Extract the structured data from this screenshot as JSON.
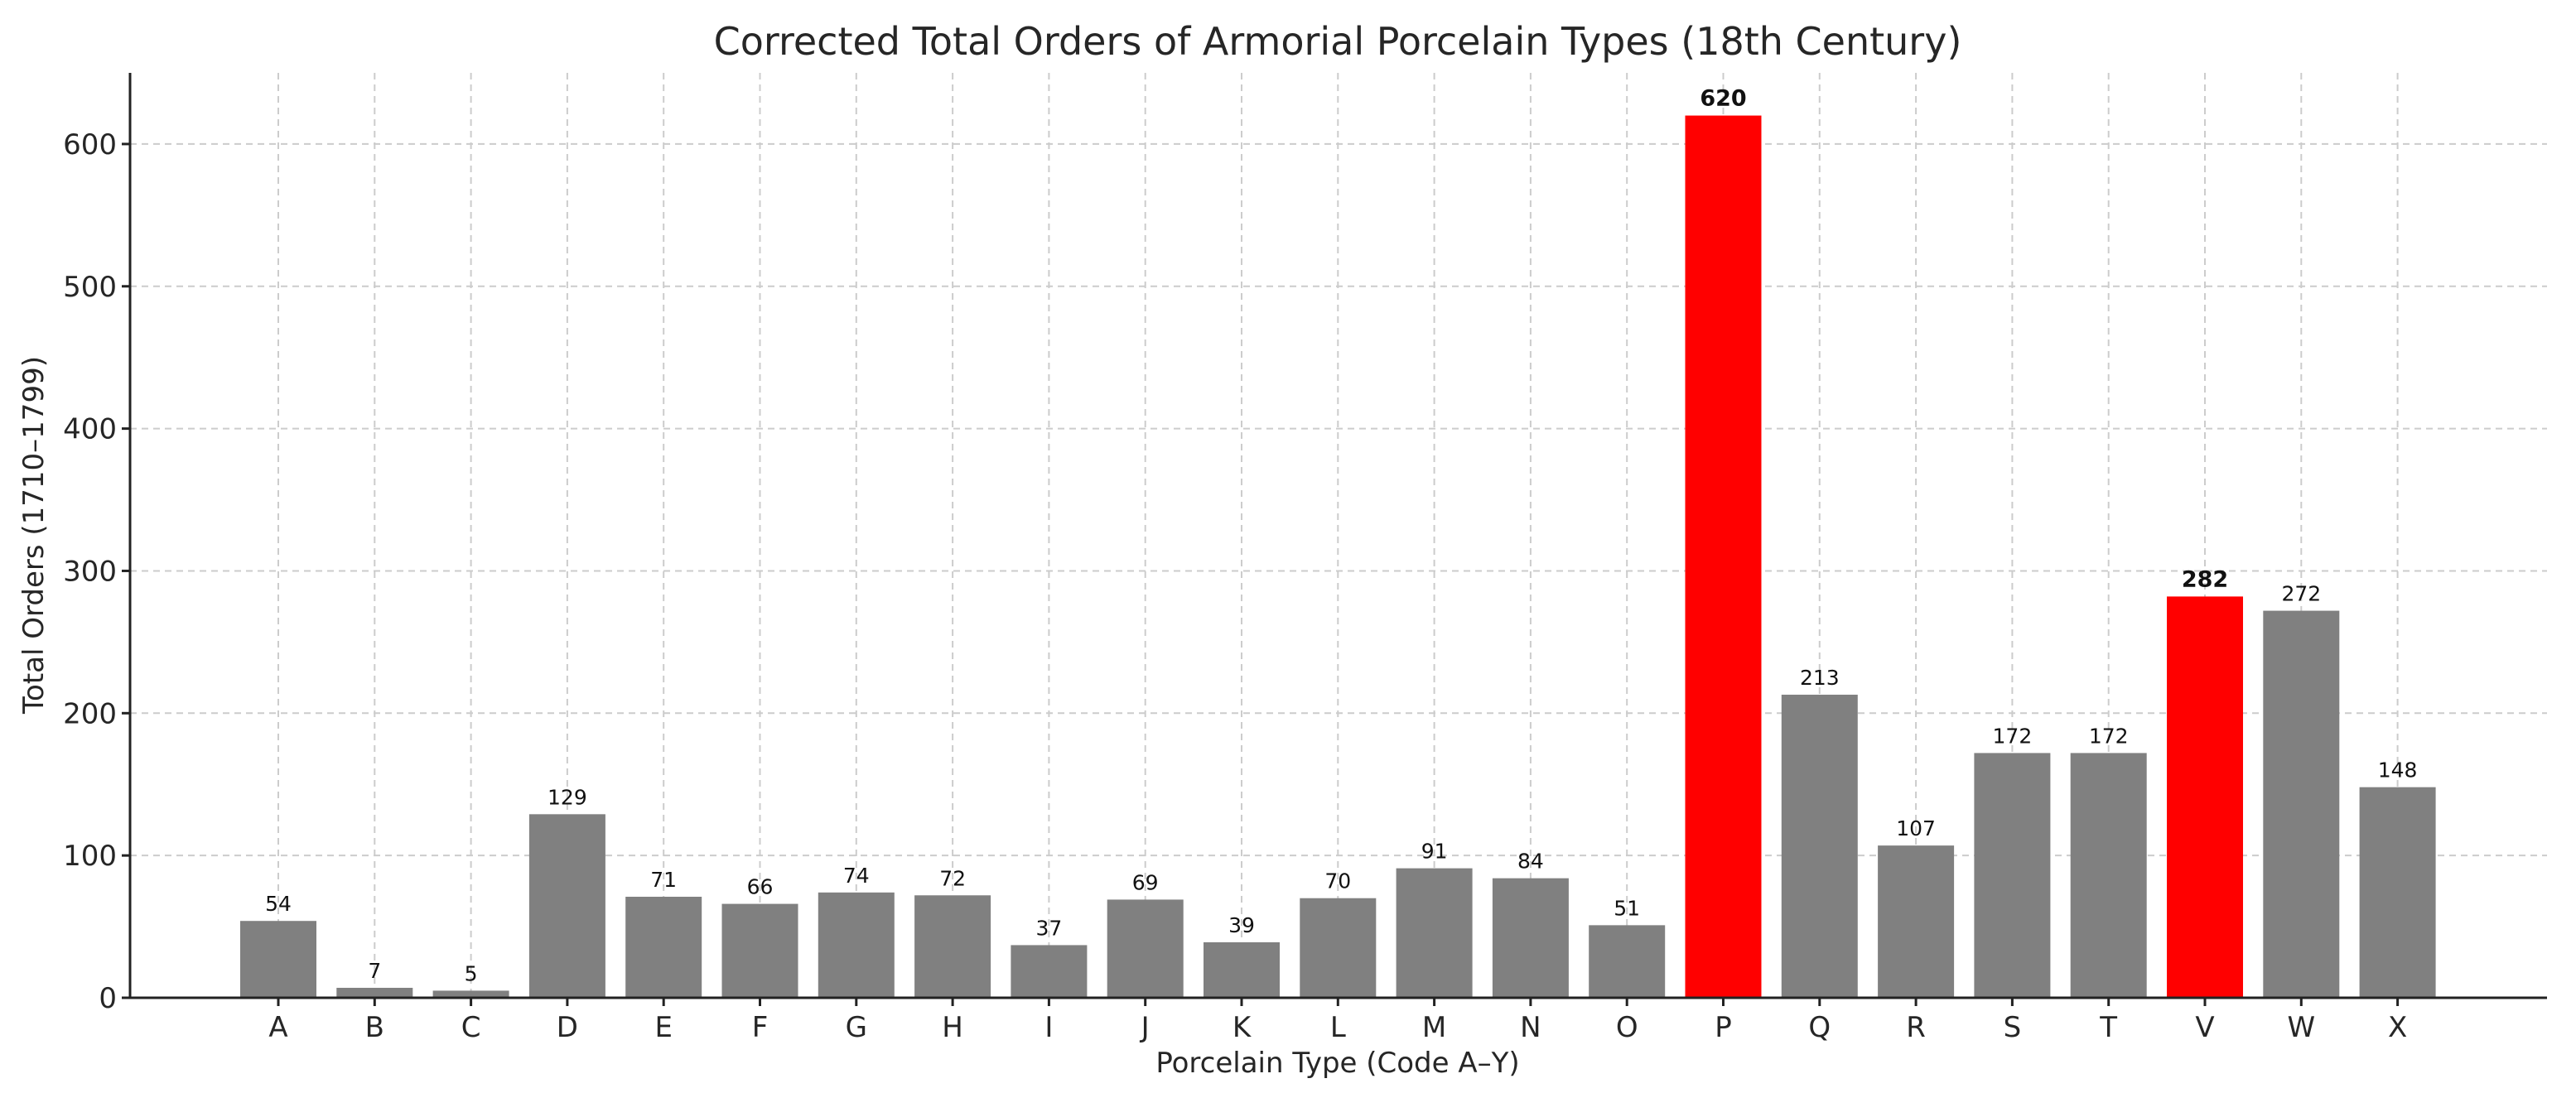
{
  "chart_data": {
    "type": "bar",
    "title": "Corrected Total Orders of Armorial Porcelain Types (18th Century)",
    "xlabel": "Porcelain Type (Code A–Y)",
    "ylabel": "Total Orders (1710–1799)",
    "categories": [
      "A",
      "B",
      "C",
      "D",
      "E",
      "F",
      "G",
      "H",
      "I",
      "J",
      "K",
      "L",
      "M",
      "N",
      "O",
      "P",
      "Q",
      "R",
      "S",
      "T",
      "V",
      "W",
      "X"
    ],
    "values": [
      54,
      7,
      5,
      129,
      71,
      66,
      74,
      72,
      37,
      69,
      39,
      70,
      91,
      84,
      51,
      620,
      213,
      107,
      172,
      172,
      282,
      272,
      148
    ],
    "highlighted": [
      "P",
      "V"
    ],
    "ylim": [
      0,
      650
    ],
    "yticks": [
      0,
      100,
      200,
      300,
      400,
      500,
      600
    ],
    "grid": true,
    "colors": {
      "bar": "#808080",
      "highlight": "#ff0000",
      "grid": "#cccccc",
      "text": "#262626"
    }
  }
}
